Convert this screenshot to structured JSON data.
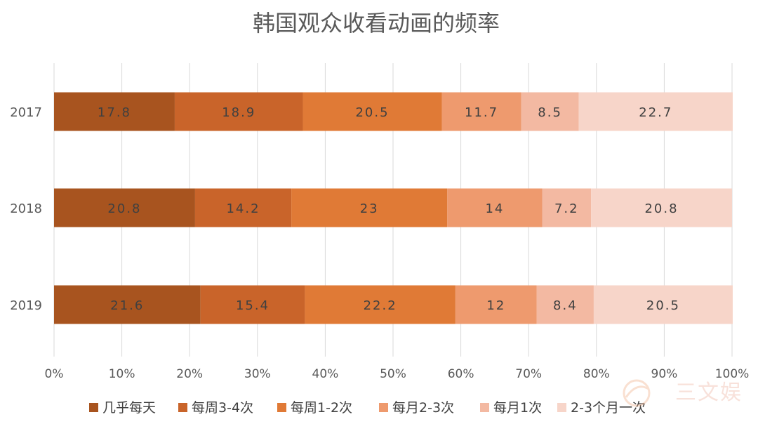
{
  "chart_data": {
    "type": "bar",
    "orientation": "horizontal",
    "stacked": "percent",
    "title": "韩国观众收看动画的频率",
    "categories": [
      "2017",
      "2018",
      "2019"
    ],
    "series": [
      {
        "name": "几乎每天",
        "values": [
          17.8,
          20.8,
          21.6
        ]
      },
      {
        "name": "每周3-4次",
        "values": [
          18.9,
          14.2,
          15.4
        ]
      },
      {
        "name": "每周1-2次",
        "values": [
          20.5,
          23,
          22.2
        ]
      },
      {
        "name": "每月2-3次",
        "values": [
          11.7,
          14,
          12
        ]
      },
      {
        "name": "每月1次",
        "values": [
          8.5,
          7.2,
          8.4
        ]
      },
      {
        "name": "2-3个月一次",
        "values": [
          22.7,
          20.8,
          20.5
        ]
      }
    ],
    "data_labels": [
      [
        "17.8",
        "18.9",
        "20.5",
        "11.7",
        "8.5",
        "22.7"
      ],
      [
        "20.8",
        "14.2",
        "23",
        "14",
        "7.2",
        "20.8"
      ],
      [
        "21.6",
        "15.4",
        "22.2",
        "12",
        "8.4",
        "20.5"
      ]
    ],
    "xlim": [
      0,
      100
    ],
    "x_ticks": [
      "0%",
      "10%",
      "20%",
      "30%",
      "40%",
      "50%",
      "60%",
      "70%",
      "80%",
      "90%",
      "100%"
    ],
    "grid": true,
    "legend_position": "bottom",
    "colors": [
      "#a8541f",
      "#c9642a",
      "#e07a36",
      "#ee9a6e",
      "#f3b9a2",
      "#f7d5c9"
    ]
  },
  "watermark": "三文娱"
}
